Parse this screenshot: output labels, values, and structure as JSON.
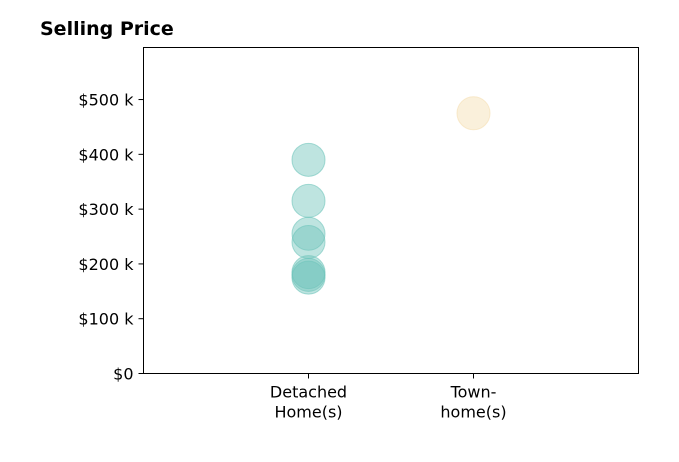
{
  "chart_data": {
    "type": "scatter",
    "title": "Selling Price",
    "xlabel": "",
    "ylabel": "",
    "categories": [
      [
        "Detached",
        "Home(s)"
      ],
      [
        "Town-",
        "home(s)"
      ]
    ],
    "xlim": [
      0,
      3
    ],
    "ylim": [
      0,
      595000
    ],
    "yticks": [
      0,
      100000,
      200000,
      300000,
      400000,
      500000
    ],
    "ytick_labels": [
      "$0",
      "$100 k",
      "$200 k",
      "$300 k",
      "$400 k",
      "$500 k"
    ],
    "grid": false,
    "series": [
      {
        "category_index": 0,
        "color": "#6ec4bb",
        "values": [
          390000,
          315000,
          255000,
          240000,
          185000,
          180000,
          175000
        ]
      },
      {
        "category_index": 1,
        "color": "#f5deb0",
        "values": [
          475000
        ]
      }
    ]
  }
}
